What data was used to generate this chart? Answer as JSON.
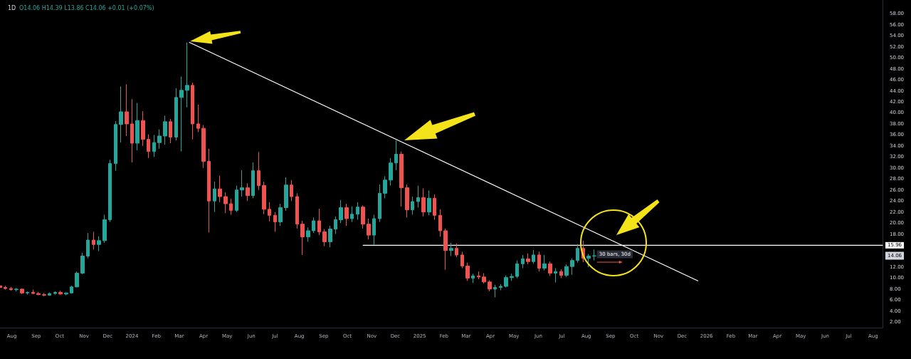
{
  "chart_data": {
    "type": "candlestick",
    "title": "1D",
    "subtitle": "O14.06 H14.39 L13.86 C14.06 +0.01 (+0.07%)",
    "xlim": [
      "2023-07-17",
      "2026-08-13"
    ],
    "xticks": [
      {
        "value": "2023-08-01",
        "label": "Aug"
      },
      {
        "value": "2023-09-01",
        "label": "Sep"
      },
      {
        "value": "2023-10-01",
        "label": "Oct"
      },
      {
        "value": "2023-11-01",
        "label": "Nov"
      },
      {
        "value": "2023-12-01",
        "label": "Dec"
      },
      {
        "value": "2024-01-01",
        "label": "2024"
      },
      {
        "value": "2024-02-01",
        "label": "Feb"
      },
      {
        "value": "2024-03-01",
        "label": "Mar"
      },
      {
        "value": "2024-04-01",
        "label": "Apr"
      },
      {
        "value": "2024-05-01",
        "label": "May"
      },
      {
        "value": "2024-06-01",
        "label": "Jun"
      },
      {
        "value": "2024-07-01",
        "label": "Jul"
      },
      {
        "value": "2024-08-01",
        "label": "Aug"
      },
      {
        "value": "2024-09-01",
        "label": "Sep"
      },
      {
        "value": "2024-10-01",
        "label": "Oct"
      },
      {
        "value": "2024-11-01",
        "label": "Nov"
      },
      {
        "value": "2024-12-01",
        "label": "Dec"
      },
      {
        "value": "2025-01-01",
        "label": "2025"
      },
      {
        "value": "2025-02-01",
        "label": "Feb"
      },
      {
        "value": "2025-03-01",
        "label": "Mar"
      },
      {
        "value": "2025-04-01",
        "label": "Apr"
      },
      {
        "value": "2025-05-01",
        "label": "May"
      },
      {
        "value": "2025-06-01",
        "label": "Jun"
      },
      {
        "value": "2025-07-01",
        "label": "Jul"
      },
      {
        "value": "2025-08-01",
        "label": "Aug"
      },
      {
        "value": "2025-09-01",
        "label": "Sep"
      },
      {
        "value": "2025-10-01",
        "label": "Oct"
      },
      {
        "value": "2025-11-01",
        "label": "Nov"
      },
      {
        "value": "2025-12-01",
        "label": "Dec"
      },
      {
        "value": "2026-01-01",
        "label": "2026"
      },
      {
        "value": "2026-02-01",
        "label": "Feb"
      },
      {
        "value": "2026-03-01",
        "label": "Mar"
      },
      {
        "value": "2026-04-01",
        "label": "Apr"
      },
      {
        "value": "2026-05-01",
        "label": "May"
      },
      {
        "value": "2026-06-01",
        "label": "Jun"
      },
      {
        "value": "2026-07-01",
        "label": "Jul"
      },
      {
        "value": "2026-08-01",
        "label": "Aug"
      }
    ],
    "ylim": [
      1,
      60.5
    ],
    "yticks": [
      {
        "value": 2,
        "label": "2.00"
      },
      {
        "value": 4,
        "label": "4.00"
      },
      {
        "value": 6,
        "label": "6.00"
      },
      {
        "value": 8,
        "label": "8.00"
      },
      {
        "value": 10,
        "label": "10.00"
      },
      {
        "value": 12,
        "label": "12.00"
      },
      {
        "value": 18,
        "label": "18.00"
      },
      {
        "value": 20,
        "label": "20.00"
      },
      {
        "value": 22,
        "label": "22.00"
      },
      {
        "value": 24,
        "label": "24.00"
      },
      {
        "value": 26,
        "label": "26.00"
      },
      {
        "value": 28,
        "label": "28.00"
      },
      {
        "value": 30,
        "label": "30.00"
      },
      {
        "value": 32,
        "label": "32.00"
      },
      {
        "value": 34,
        "label": "34.00"
      },
      {
        "value": 36,
        "label": "36.00"
      },
      {
        "value": 38,
        "label": "38.00"
      },
      {
        "value": 40,
        "label": "40.00"
      },
      {
        "value": 42,
        "label": "42.00"
      },
      {
        "value": 44,
        "label": "44.00"
      },
      {
        "value": 46,
        "label": "46.00"
      },
      {
        "value": 48,
        "label": "48.00"
      },
      {
        "value": 50,
        "label": "50.00"
      },
      {
        "value": 52,
        "label": "52.00"
      },
      {
        "value": 54,
        "label": "54.00"
      },
      {
        "value": 56,
        "label": "56.00"
      },
      {
        "value": 58,
        "label": "58.00"
      }
    ],
    "grid": false,
    "marker": "none",
    "line_style": "solid",
    "series": [
      {
        "x": [
          "2023-07-17",
          "2023-07-24",
          "2023-07-31",
          "2023-08-07",
          "2023-08-14",
          "2023-08-21",
          "2023-08-28",
          "2023-09-04",
          "2023-09-11",
          "2023-09-18",
          "2023-09-25",
          "2023-10-02",
          "2023-10-09",
          "2023-10-16",
          "2023-10-23",
          "2023-10-30",
          "2023-11-06",
          "2023-11-13",
          "2023-11-20",
          "2023-11-27",
          "2023-12-04",
          "2023-12-11",
          "2023-12-18",
          "2023-12-25",
          "2024-01-01",
          "2024-01-08",
          "2024-01-15",
          "2024-01-22",
          "2024-01-29",
          "2024-02-05",
          "2024-02-12",
          "2024-02-19",
          "2024-02-26",
          "2024-03-04",
          "2024-03-11",
          "2024-03-18",
          "2024-03-25",
          "2024-04-01",
          "2024-04-08",
          "2024-04-15",
          "2024-04-22",
          "2024-04-29",
          "2024-05-06",
          "2024-05-13",
          "2024-05-20",
          "2024-05-27",
          "2024-06-03",
          "2024-06-10",
          "2024-06-17",
          "2024-06-24",
          "2024-07-01",
          "2024-07-08",
          "2024-07-15",
          "2024-07-22",
          "2024-07-29",
          "2024-08-05",
          "2024-08-12",
          "2024-08-19",
          "2024-08-26",
          "2024-09-02",
          "2024-09-09",
          "2024-09-16",
          "2024-09-23",
          "2024-09-30",
          "2024-10-07",
          "2024-10-14",
          "2024-10-21",
          "2024-10-28",
          "2024-11-04",
          "2024-11-11",
          "2024-11-18",
          "2024-11-25",
          "2024-12-02",
          "2024-12-09",
          "2024-12-16",
          "2024-12-23",
          "2024-12-30",
          "2025-01-06",
          "2025-01-13",
          "2025-01-20",
          "2025-01-27",
          "2025-02-03",
          "2025-02-10",
          "2025-02-17",
          "2025-02-24",
          "2025-03-03",
          "2025-03-10",
          "2025-03-17",
          "2025-03-24",
          "2025-03-31",
          "2025-04-07",
          "2025-04-14",
          "2025-04-21",
          "2025-04-28",
          "2025-05-05",
          "2025-05-12",
          "2025-05-19",
          "2025-05-26",
          "2025-06-02",
          "2025-06-09",
          "2025-06-16",
          "2025-06-23",
          "2025-06-30",
          "2025-07-07",
          "2025-07-14",
          "2025-07-21",
          "2025-07-28",
          "2025-08-04",
          "2025-08-11"
        ],
        "ohlc": [
          [
            8.6,
            8.9,
            8.1,
            8.3
          ],
          [
            8.3,
            8.6,
            7.9,
            8.1
          ],
          [
            8.1,
            8.4,
            7.7,
            7.9
          ],
          [
            7.9,
            8.2,
            7.6,
            8.0
          ],
          [
            8.0,
            8.1,
            7.1,
            7.3
          ],
          [
            7.3,
            7.6,
            7.0,
            7.4
          ],
          [
            7.4,
            7.9,
            7.1,
            7.2
          ],
          [
            7.2,
            7.5,
            6.9,
            7.0
          ],
          [
            7.0,
            7.3,
            6.7,
            6.9
          ],
          [
            6.9,
            7.4,
            6.8,
            7.2
          ],
          [
            7.2,
            7.6,
            7.0,
            7.4
          ],
          [
            7.4,
            7.7,
            7.0,
            7.1
          ],
          [
            7.1,
            7.4,
            6.9,
            7.3
          ],
          [
            7.3,
            8.6,
            7.2,
            8.4
          ],
          [
            8.4,
            11.2,
            8.3,
            10.9
          ],
          [
            10.9,
            14.6,
            10.7,
            14.0
          ],
          [
            14.0,
            18.2,
            13.6,
            16.9
          ],
          [
            16.9,
            18.4,
            15.2,
            16.1
          ],
          [
            16.1,
            17.6,
            14.9,
            16.8
          ],
          [
            16.8,
            21.5,
            16.4,
            20.6
          ],
          [
            20.6,
            31.5,
            20.2,
            30.8
          ],
          [
            30.8,
            38.5,
            29.5,
            37.9
          ],
          [
            37.9,
            44.8,
            34.6,
            40.2
          ],
          [
            40.2,
            45.2,
            35.8,
            38.0
          ],
          [
            38.0,
            42.5,
            31.0,
            34.5
          ],
          [
            34.5,
            41.8,
            33.2,
            38.6
          ],
          [
            38.6,
            40.3,
            34.0,
            35.2
          ],
          [
            35.2,
            36.1,
            31.8,
            33.0
          ],
          [
            33.0,
            36.0,
            32.0,
            34.6
          ],
          [
            34.6,
            37.0,
            33.5,
            35.8
          ],
          [
            35.8,
            39.5,
            34.2,
            38.4
          ],
          [
            38.4,
            38.9,
            34.5,
            35.6
          ],
          [
            35.6,
            44.5,
            35.0,
            42.8
          ],
          [
            42.8,
            46.6,
            33.0,
            44.1
          ],
          [
            44.1,
            52.8,
            41.0,
            45.0
          ],
          [
            45.0,
            45.5,
            35.2,
            38.0
          ],
          [
            38.0,
            41.5,
            36.5,
            37.2
          ],
          [
            37.2,
            37.8,
            30.0,
            31.2
          ],
          [
            31.2,
            33.5,
            18.3,
            24.0
          ],
          [
            24.0,
            27.5,
            22.0,
            26.2
          ],
          [
            26.2,
            28.6,
            23.8,
            24.8
          ],
          [
            24.8,
            25.6,
            21.8,
            23.5
          ],
          [
            23.5,
            24.4,
            21.5,
            22.3
          ],
          [
            22.3,
            26.8,
            22.0,
            26.0
          ],
          [
            26.0,
            29.6,
            24.8,
            26.4
          ],
          [
            26.4,
            27.2,
            24.0,
            25.0
          ],
          [
            25.0,
            31.0,
            24.5,
            29.5
          ],
          [
            29.5,
            32.9,
            26.0,
            26.8
          ],
          [
            26.8,
            27.5,
            21.6,
            22.5
          ],
          [
            22.5,
            23.8,
            20.3,
            21.4
          ],
          [
            21.4,
            22.0,
            18.4,
            20.2
          ],
          [
            20.2,
            23.5,
            19.5,
            22.8
          ],
          [
            22.8,
            28.3,
            22.2,
            26.9
          ],
          [
            26.9,
            27.8,
            24.0,
            24.8
          ],
          [
            24.8,
            25.4,
            19.0,
            19.8
          ],
          [
            19.8,
            20.4,
            14.2,
            17.5
          ],
          [
            17.5,
            19.2,
            16.6,
            18.6
          ],
          [
            18.6,
            21.0,
            18.2,
            20.4
          ],
          [
            20.4,
            22.6,
            17.8,
            18.4
          ],
          [
            18.4,
            18.9,
            15.8,
            16.6
          ],
          [
            16.6,
            19.5,
            15.6,
            18.9
          ],
          [
            18.9,
            21.2,
            18.0,
            20.6
          ],
          [
            20.6,
            24.2,
            20.0,
            22.8
          ],
          [
            22.8,
            23.5,
            19.5,
            20.8
          ],
          [
            20.8,
            23.0,
            20.2,
            21.6
          ],
          [
            21.6,
            23.8,
            20.6,
            22.9
          ],
          [
            22.9,
            23.2,
            19.0,
            19.8
          ],
          [
            19.8,
            20.8,
            17.0,
            17.8
          ],
          [
            17.8,
            21.5,
            16.0,
            20.8
          ],
          [
            20.8,
            27.0,
            20.2,
            25.4
          ],
          [
            25.4,
            28.5,
            24.5,
            27.8
          ],
          [
            27.8,
            31.8,
            26.8,
            30.9
          ],
          [
            30.9,
            35.0,
            29.6,
            32.5
          ],
          [
            32.5,
            33.0,
            23.0,
            26.4
          ],
          [
            26.4,
            27.0,
            21.0,
            22.4
          ],
          [
            22.4,
            24.8,
            21.5,
            23.9
          ],
          [
            23.9,
            26.8,
            22.8,
            24.6
          ],
          [
            24.6,
            26.3,
            21.2,
            22.0
          ],
          [
            22.0,
            25.9,
            21.4,
            24.5
          ],
          [
            24.5,
            25.2,
            20.6,
            21.4
          ],
          [
            21.4,
            22.5,
            17.5,
            18.6
          ],
          [
            18.6,
            19.0,
            11.5,
            15.0
          ],
          [
            15.0,
            16.4,
            14.0,
            15.4
          ],
          [
            15.4,
            16.3,
            13.8,
            14.2
          ],
          [
            14.2,
            14.8,
            11.8,
            12.2
          ],
          [
            12.2,
            12.8,
            9.5,
            10.0
          ],
          [
            10.0,
            10.8,
            9.1,
            10.4
          ],
          [
            10.4,
            11.2,
            9.8,
            10.2
          ],
          [
            10.2,
            10.9,
            9.0,
            9.3
          ],
          [
            9.3,
            9.6,
            7.6,
            8.0
          ],
          [
            8.0,
            8.8,
            6.5,
            8.3
          ],
          [
            8.3,
            8.9,
            7.8,
            8.5
          ],
          [
            8.5,
            10.5,
            8.3,
            10.1
          ],
          [
            10.1,
            10.8,
            9.5,
            10.3
          ],
          [
            10.3,
            13.2,
            10.0,
            12.6
          ],
          [
            12.6,
            14.2,
            11.8,
            13.5
          ],
          [
            13.5,
            14.5,
            12.5,
            13.0
          ],
          [
            13.0,
            15.1,
            12.6,
            14.2
          ],
          [
            14.2,
            14.8,
            11.2,
            11.8
          ],
          [
            11.8,
            14.2,
            11.4,
            12.6
          ],
          [
            12.6,
            13.0,
            10.4,
            10.9
          ],
          [
            10.9,
            11.8,
            9.2,
            11.2
          ],
          [
            11.2,
            11.6,
            10.0,
            10.5
          ],
          [
            10.5,
            12.5,
            10.2,
            12.1
          ],
          [
            12.1,
            13.6,
            10.6,
            13.2
          ],
          [
            13.2,
            16.2,
            12.8,
            15.4
          ],
          [
            15.4,
            16.8,
            12.9,
            13.6
          ],
          [
            13.6,
            14.4,
            12.0,
            14.0
          ],
          [
            14.0,
            15.2,
            13.2,
            14.06
          ]
        ],
        "colors": [
          "#ef5350",
          "#ef5350",
          "#ef5350",
          "#26a69a",
          "#ef5350",
          "#26a69a",
          "#ef5350",
          "#ef5350",
          "#ef5350",
          "#26a69a",
          "#26a69a",
          "#ef5350",
          "#26a69a",
          "#26a69a",
          "#26a69a",
          "#26a69a",
          "#26a69a",
          "#ef5350",
          "#26a69a",
          "#26a69a",
          "#26a69a",
          "#26a69a",
          "#26a69a",
          "#ef5350",
          "#ef5350",
          "#26a69a",
          "#ef5350",
          "#ef5350",
          "#26a69a",
          "#26a69a",
          "#26a69a",
          "#ef5350",
          "#26a69a",
          "#26a69a",
          "#26a69a",
          "#ef5350",
          "#ef5350",
          "#ef5350",
          "#ef5350",
          "#26a69a",
          "#ef5350",
          "#ef5350",
          "#ef5350",
          "#26a69a",
          "#26a69a",
          "#ef5350",
          "#26a69a",
          "#ef5350",
          "#ef5350",
          "#ef5350",
          "#ef5350",
          "#26a69a",
          "#26a69a",
          "#ef5350",
          "#ef5350",
          "#ef5350",
          "#26a69a",
          "#26a69a",
          "#ef5350",
          "#ef5350",
          "#26a69a",
          "#26a69a",
          "#26a69a",
          "#ef5350",
          "#26a69a",
          "#26a69a",
          "#ef5350",
          "#ef5350",
          "#26a69a",
          "#26a69a",
          "#26a69a",
          "#26a69a",
          "#26a69a",
          "#ef5350",
          "#ef5350",
          "#26a69a",
          "#26a69a",
          "#ef5350",
          "#26a69a",
          "#ef5350",
          "#ef5350",
          "#ef5350",
          "#26a69a",
          "#ef5350",
          "#ef5350",
          "#ef5350",
          "#26a69a",
          "#ef5350",
          "#ef5350",
          "#ef5350",
          "#26a69a",
          "#26a69a",
          "#26a69a",
          "#26a69a",
          "#26a69a",
          "#26a69a",
          "#ef5350",
          "#26a69a",
          "#ef5350",
          "#26a69a",
          "#ef5350",
          "#26a69a",
          "#ef5350",
          "#26a69a",
          "#26a69a",
          "#26a69a",
          "#ef5350",
          "#26a69a",
          "#26a69a"
        ]
      },
      {
        "type": "line",
        "color": "#ffffff",
        "x": [
          "2024-03-14",
          "2025-12-21"
        ],
        "values": [
          52.8,
          9.5
        ]
      },
      {
        "type": "line",
        "color": "#ffffff",
        "x": [
          "2024-10-21",
          "2026-08-13"
        ],
        "values": [
          15.96,
          15.96
        ],
        "value_labels": [
          null,
          "15.96"
        ]
      }
    ],
    "annotations": [
      "30 bars, 30d",
      "14.06"
    ]
  }
}
